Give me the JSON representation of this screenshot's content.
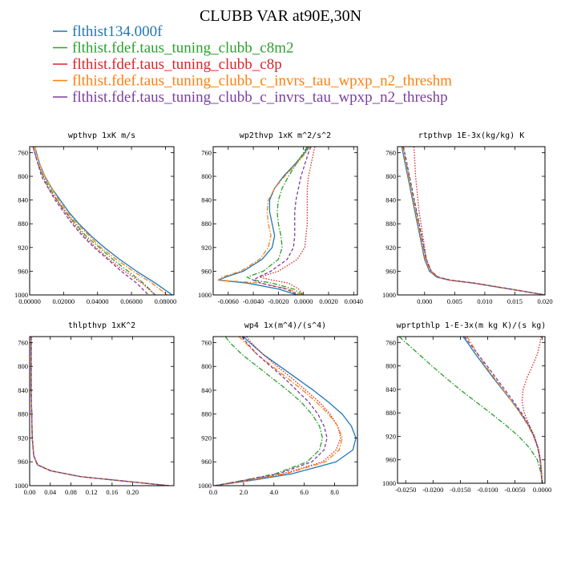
{
  "title": "CLUBB VAR at90E,30N",
  "colors": {
    "blue": "#1f77b4",
    "green": "#2ca02c",
    "red": "#d62728",
    "orange": "#ff7f0e",
    "purple": "#7b3f9e"
  },
  "legend": [
    {
      "label": "flthist134.000f",
      "color": "#1f77b4",
      "dash": "solid"
    },
    {
      "label": "flthist.fdef.taus_tuning_clubb_c8m2",
      "color": "#2ca02c",
      "dash": "dashdot"
    },
    {
      "label": "flthist.fdef.taus_tuning_clubb_c8p",
      "color": "#d62728",
      "dash": "dotted"
    },
    {
      "label": "flthist.fdef.taus_tuning_clubb_c_invrs_tau_wpxp_n2_threshm",
      "color": "#ff7f0e",
      "dash": "dashdot"
    },
    {
      "label": "flthist.fdef.taus_tuning_clubb_c_invrs_tau_wpxp_n2_threshp",
      "color": "#7b3f9e",
      "dash": "dashed"
    }
  ],
  "chart_data": [
    {
      "type": "line",
      "title": "wpthvp  1xK m/s",
      "xlim": [
        0.0,
        0.085
      ],
      "ylim": [
        1000,
        750
      ],
      "xticks": [
        0.0,
        0.02,
        0.04,
        0.06,
        0.08
      ],
      "xtick_labels": [
        "0.00000",
        "0.02000",
        "0.04000",
        "0.06000",
        "0.08000"
      ],
      "yticks": [
        760,
        800,
        840,
        880,
        920,
        960,
        1000
      ],
      "ytick_labels": [
        "760",
        "800",
        "840",
        "880",
        "920",
        "960",
        "1000"
      ],
      "y": [
        750,
        760,
        780,
        800,
        820,
        840,
        860,
        880,
        900,
        920,
        940,
        960,
        980,
        1000
      ],
      "series": [
        {
          "values": [
            0.003,
            0.004,
            0.006,
            0.009,
            0.013,
            0.018,
            0.023,
            0.029,
            0.036,
            0.044,
            0.053,
            0.063,
            0.074,
            0.084
          ]
        },
        {
          "values": [
            0.002,
            0.003,
            0.005,
            0.008,
            0.012,
            0.016,
            0.021,
            0.027,
            0.033,
            0.041,
            0.049,
            0.058,
            0.067,
            0.074
          ]
        },
        {
          "values": [
            0.002,
            0.003,
            0.005,
            0.008,
            0.011,
            0.016,
            0.021,
            0.026,
            0.032,
            0.039,
            0.047,
            0.056,
            0.066,
            0.074
          ]
        },
        {
          "values": [
            0.003,
            0.004,
            0.006,
            0.009,
            0.013,
            0.017,
            0.022,
            0.028,
            0.035,
            0.042,
            0.051,
            0.061,
            0.072,
            0.081
          ]
        },
        {
          "values": [
            0.002,
            0.003,
            0.005,
            0.007,
            0.011,
            0.015,
            0.02,
            0.025,
            0.031,
            0.038,
            0.046,
            0.054,
            0.063,
            0.07
          ]
        }
      ]
    },
    {
      "type": "line",
      "title": "wp2thvp  1xK m^2/s^2",
      "xlim": [
        -0.0072,
        0.0043
      ],
      "ylim": [
        1000,
        750
      ],
      "xticks": [
        -0.006,
        -0.004,
        -0.002,
        0.0,
        0.002,
        0.004
      ],
      "xtick_labels": [
        "-0.0060",
        "-0.0040",
        "-0.0020",
        "0.0000",
        "0.0020",
        "0.0040"
      ],
      "yticks": [
        760,
        800,
        840,
        880,
        920,
        960,
        1000
      ],
      "ytick_labels": [
        "760",
        "800",
        "840",
        "880",
        "920",
        "960",
        "1000"
      ],
      "y": [
        750,
        760,
        780,
        800,
        820,
        840,
        860,
        880,
        900,
        920,
        940,
        960,
        970,
        975,
        980,
        990,
        1000
      ],
      "series": [
        {
          "values": [
            0.0004,
            0.0001,
            -0.0007,
            -0.0016,
            -0.0023,
            -0.0027,
            -0.0027,
            -0.0025,
            -0.0023,
            -0.0025,
            -0.0033,
            -0.0048,
            -0.0062,
            -0.0068,
            -0.0045,
            -0.002,
            -0.0005
          ]
        },
        {
          "values": [
            0.0003,
            0.0,
            -0.0006,
            -0.0012,
            -0.0017,
            -0.002,
            -0.0021,
            -0.002,
            -0.0018,
            -0.0017,
            -0.002,
            -0.0032,
            -0.0045,
            -0.004,
            -0.0025,
            -0.0008,
            0.0
          ]
        },
        {
          "values": [
            0.0009,
            0.0008,
            0.0006,
            0.0004,
            0.0003,
            0.0003,
            0.0003,
            0.0003,
            0.0002,
            0.0001,
            -0.0005,
            -0.002,
            -0.0035,
            -0.0025,
            -0.0012,
            -0.0004,
            0.0
          ]
        },
        {
          "values": [
            0.0005,
            0.0002,
            -0.0006,
            -0.0015,
            -0.0023,
            -0.0028,
            -0.0029,
            -0.0028,
            -0.0026,
            -0.0028,
            -0.0035,
            -0.005,
            -0.0065,
            -0.0068,
            -0.0035,
            -0.0012,
            -0.0002
          ]
        },
        {
          "values": [
            0.0006,
            0.0004,
            0.0001,
            -0.0002,
            -0.0004,
            -0.0006,
            -0.0007,
            -0.0007,
            -0.0007,
            -0.0008,
            -0.0013,
            -0.0026,
            -0.0036,
            -0.004,
            -0.0034,
            -0.0014,
            -0.0004
          ]
        }
      ]
    },
    {
      "type": "line",
      "title": "rtpthvp  1E-3x(kg/kg) K",
      "xlim": [
        -0.0045,
        0.02
      ],
      "ylim": [
        1000,
        750
      ],
      "xticks": [
        0.0,
        0.005,
        0.01,
        0.015,
        0.02
      ],
      "xtick_labels": [
        "0.000",
        "0.005",
        "0.010",
        "0.015",
        "0.020"
      ],
      "yticks": [
        760,
        800,
        840,
        880,
        920,
        960,
        1000
      ],
      "ytick_labels": [
        "760",
        "800",
        "840",
        "880",
        "920",
        "960",
        "1000"
      ],
      "y": [
        750,
        760,
        780,
        800,
        820,
        840,
        860,
        880,
        900,
        920,
        940,
        960,
        970,
        975,
        980,
        990,
        1000
      ],
      "series": [
        {
          "values": [
            -0.0038,
            -0.0036,
            -0.0032,
            -0.0028,
            -0.0024,
            -0.002,
            -0.0016,
            -0.0012,
            -0.0008,
            -0.0004,
            0.0,
            0.0008,
            0.002,
            0.004,
            0.008,
            0.014,
            0.02
          ]
        },
        {
          "values": [
            -0.0036,
            -0.0034,
            -0.003,
            -0.0026,
            -0.0022,
            -0.0018,
            -0.0014,
            -0.001,
            -0.0006,
            -0.0002,
            0.0002,
            0.001,
            0.0022,
            0.0042,
            0.0082,
            0.0142,
            0.02
          ]
        },
        {
          "values": [
            -0.0018,
            -0.0017,
            -0.0016,
            -0.0015,
            -0.0013,
            -0.0011,
            -0.0009,
            -0.0006,
            -0.0003,
            0.0,
            0.0003,
            0.0011,
            0.0022,
            0.0042,
            0.0082,
            0.0142,
            0.02
          ]
        },
        {
          "values": [
            -0.0037,
            -0.0035,
            -0.0031,
            -0.0027,
            -0.0023,
            -0.0019,
            -0.0015,
            -0.0011,
            -0.0007,
            -0.0003,
            0.0001,
            0.0009,
            0.0021,
            0.0041,
            0.0081,
            0.0141,
            0.02
          ]
        },
        {
          "values": [
            -0.0035,
            -0.0033,
            -0.0029,
            -0.0025,
            -0.0021,
            -0.0017,
            -0.0013,
            -0.0009,
            -0.0005,
            -0.0001,
            0.0003,
            0.0011,
            0.0023,
            0.0043,
            0.0083,
            0.0143,
            0.02
          ]
        }
      ]
    },
    {
      "type": "line",
      "title": "thlpthvp  1xK^2",
      "xlim": [
        0.0,
        0.28
      ],
      "ylim": [
        1000,
        750
      ],
      "xticks": [
        0.0,
        0.04,
        0.08,
        0.12,
        0.16,
        0.2
      ],
      "xtick_labels": [
        "0.00",
        "0.04",
        "0.08",
        "0.12",
        "0.16",
        "0.20"
      ],
      "yticks": [
        760,
        800,
        840,
        880,
        920,
        960,
        1000
      ],
      "ytick_labels": [
        "760",
        "800",
        "840",
        "880",
        "920",
        "960",
        "1000"
      ],
      "y": [
        750,
        760,
        800,
        840,
        880,
        920,
        950,
        965,
        975,
        985,
        992,
        1000
      ],
      "series": [
        {
          "values": [
            0.003,
            0.003,
            0.003,
            0.003,
            0.004,
            0.005,
            0.008,
            0.015,
            0.04,
            0.1,
            0.18,
            0.27
          ]
        },
        {
          "values": [
            0.003,
            0.003,
            0.003,
            0.003,
            0.004,
            0.005,
            0.008,
            0.015,
            0.04,
            0.1,
            0.18,
            0.27
          ]
        },
        {
          "values": [
            0.003,
            0.003,
            0.003,
            0.003,
            0.004,
            0.005,
            0.008,
            0.016,
            0.042,
            0.1,
            0.18,
            0.27
          ]
        },
        {
          "values": [
            0.003,
            0.003,
            0.003,
            0.003,
            0.004,
            0.005,
            0.008,
            0.015,
            0.04,
            0.1,
            0.18,
            0.27
          ]
        },
        {
          "values": [
            0.003,
            0.003,
            0.003,
            0.003,
            0.004,
            0.005,
            0.008,
            0.015,
            0.04,
            0.1,
            0.18,
            0.27
          ]
        }
      ]
    },
    {
      "type": "line",
      "title": "wp4  1x(m^4)/(s^4)",
      "xlim": [
        0.0,
        9.5
      ],
      "ylim": [
        1000,
        750
      ],
      "xticks": [
        0.0,
        2.0,
        4.0,
        6.0,
        8.0
      ],
      "xtick_labels": [
        "0.0",
        "2.0",
        "4.0",
        "6.0",
        "8.0"
      ],
      "yticks": [
        760,
        800,
        840,
        880,
        920,
        960,
        1000
      ],
      "ytick_labels": [
        "760",
        "800",
        "840",
        "880",
        "920",
        "960",
        "1000"
      ],
      "y": [
        750,
        760,
        780,
        800,
        820,
        840,
        860,
        880,
        900,
        920,
        940,
        960,
        980,
        990,
        1000
      ],
      "series": [
        {
          "values": [
            2.0,
            2.4,
            3.3,
            4.4,
            5.5,
            6.6,
            7.6,
            8.5,
            9.1,
            9.4,
            9.2,
            8.1,
            5.2,
            2.8,
            0.1
          ]
        },
        {
          "values": [
            0.8,
            1.1,
            1.9,
            2.9,
            3.9,
            4.9,
            5.8,
            6.5,
            7.0,
            7.2,
            7.0,
            6.2,
            4.1,
            2.2,
            0.1
          ]
        },
        {
          "values": [
            2.2,
            2.5,
            3.3,
            4.2,
            5.2,
            6.1,
            7.0,
            7.7,
            8.2,
            8.4,
            8.1,
            7.2,
            4.6,
            2.5,
            0.1
          ]
        },
        {
          "values": [
            1.7,
            2.1,
            2.9,
            3.9,
            4.9,
            5.9,
            6.8,
            7.6,
            8.2,
            8.5,
            8.3,
            7.4,
            4.8,
            2.6,
            0.1
          ]
        },
        {
          "values": [
            1.9,
            2.2,
            2.9,
            3.8,
            4.7,
            5.5,
            6.3,
            6.9,
            7.3,
            7.5,
            7.3,
            6.5,
            4.3,
            2.3,
            0.1
          ]
        }
      ]
    },
    {
      "type": "line",
      "title": "wprtpthlp  1-E-3x(m kg K)/(s kg)",
      "xlim": [
        -0.0265,
        0.0005
      ],
      "ylim": [
        1000,
        750
      ],
      "xticks": [
        -0.025,
        -0.02,
        -0.015,
        -0.01,
        -0.005,
        0.0
      ],
      "xtick_labels": [
        "-0.0250",
        "-0.0200",
        "-0.0150",
        "-0.0100",
        "-0.0050",
        "0.0000"
      ],
      "yticks": [
        760,
        800,
        840,
        880,
        920,
        960,
        1000
      ],
      "ytick_labels": [
        "760",
        "800",
        "840",
        "880",
        "920",
        "960",
        "1000"
      ],
      "y": [
        750,
        760,
        780,
        800,
        820,
        840,
        860,
        880,
        900,
        920,
        940,
        960,
        980,
        1000
      ],
      "series": [
        {
          "values": [
            -0.0145,
            -0.0137,
            -0.0122,
            -0.0106,
            -0.009,
            -0.0073,
            -0.0056,
            -0.004,
            -0.0026,
            -0.0015,
            -0.0008,
            -0.0004,
            -0.0002,
            0.0
          ]
        },
        {
          "values": [
            -0.0262,
            -0.025,
            -0.0226,
            -0.0202,
            -0.0177,
            -0.0151,
            -0.0123,
            -0.0095,
            -0.0068,
            -0.0043,
            -0.0023,
            -0.0009,
            -0.0003,
            0.0
          ]
        },
        {
          "values": [
            -0.0002,
            -0.0004,
            -0.0009,
            -0.0018,
            -0.0028,
            -0.0035,
            -0.0037,
            -0.0033,
            -0.0024,
            -0.0014,
            -0.0007,
            -0.0003,
            -0.0001,
            0.0
          ]
        },
        {
          "values": [
            -0.0138,
            -0.0131,
            -0.0118,
            -0.0104,
            -0.0088,
            -0.0072,
            -0.0056,
            -0.0041,
            -0.0027,
            -0.0016,
            -0.0008,
            -0.0004,
            -0.0002,
            0.0
          ]
        },
        {
          "values": [
            -0.0142,
            -0.0134,
            -0.0118,
            -0.0101,
            -0.0085,
            -0.0069,
            -0.0053,
            -0.0038,
            -0.0025,
            -0.0015,
            -0.0008,
            -0.0004,
            -0.0002,
            0.0
          ]
        }
      ]
    }
  ]
}
